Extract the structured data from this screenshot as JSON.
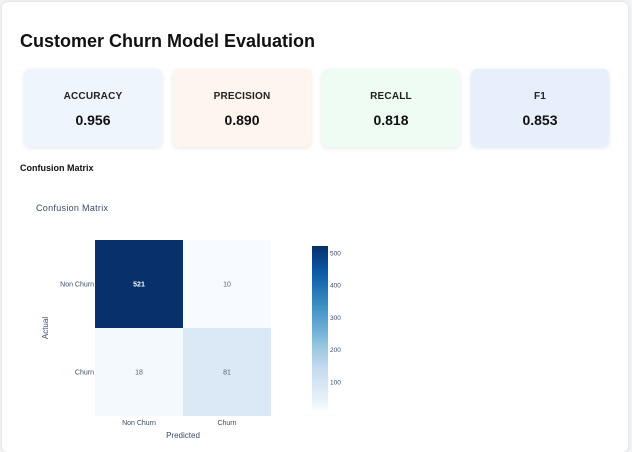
{
  "page": {
    "title": "Customer Churn Model Evaluation",
    "section_title": "Confusion Matrix"
  },
  "metrics": [
    {
      "label": "ACCURACY",
      "value": "0.956",
      "bg": "#eef5fd"
    },
    {
      "label": "PRECISION",
      "value": "0.890",
      "bg": "#fdf5ee"
    },
    {
      "label": "RECALL",
      "value": "0.818",
      "bg": "#eefcf3"
    },
    {
      "label": "F1",
      "value": "0.853",
      "bg": "#e8effc"
    }
  ],
  "chart_data": {
    "type": "heatmap",
    "title": "Confusion Matrix",
    "xlabel": "Predicted",
    "ylabel": "Actual",
    "x_categories": [
      "Non Churn",
      "Churn"
    ],
    "y_categories": [
      "Non Churn",
      "Churn"
    ],
    "values": [
      [
        521,
        10
      ],
      [
        18,
        81
      ]
    ],
    "colorscale": "Blues",
    "zrange": [
      10,
      521
    ],
    "colorbar_ticks": [
      100,
      200,
      300,
      400,
      500
    ]
  }
}
